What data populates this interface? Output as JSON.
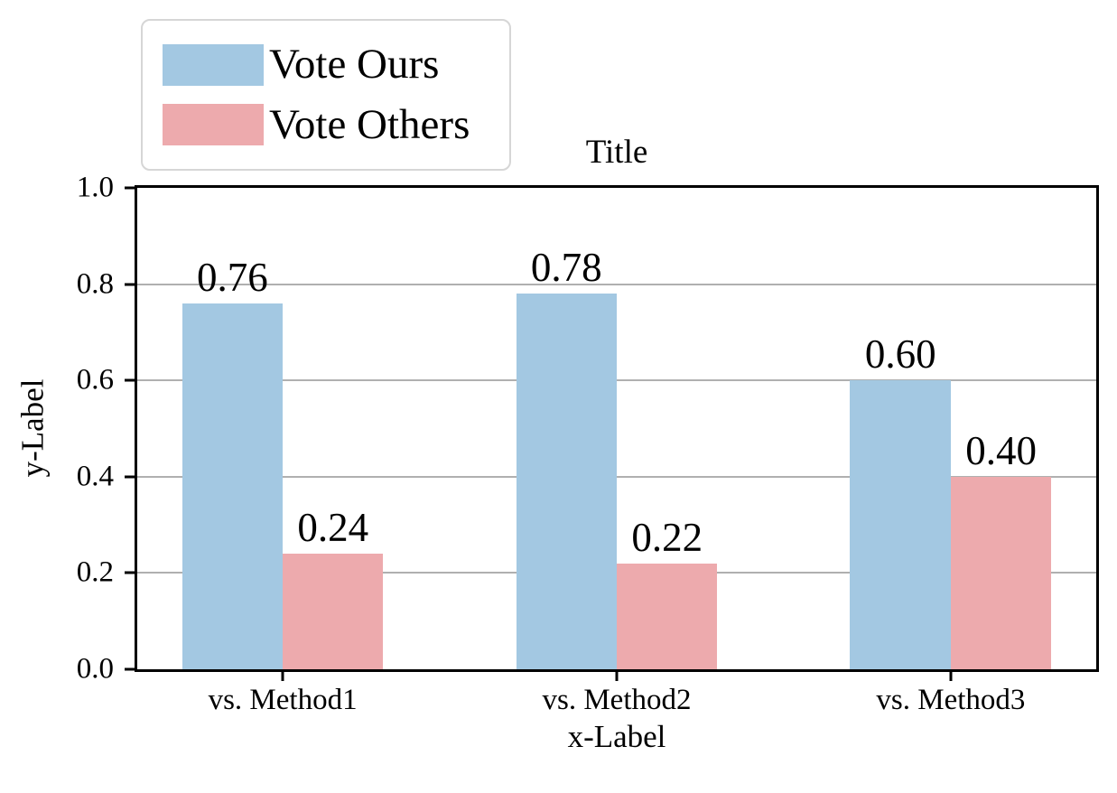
{
  "chart_data": {
    "type": "bar",
    "title": "Title",
    "xlabel": "x-Label",
    "ylabel": "y-Label",
    "categories": [
      "vs. Method1",
      "vs. Method2",
      "vs. Method3"
    ],
    "series": [
      {
        "name": "Vote Ours",
        "color": "#a3c8e2",
        "values": [
          0.76,
          0.78,
          0.6
        ]
      },
      {
        "name": "Vote Others",
        "color": "#edaaad",
        "values": [
          0.24,
          0.22,
          0.4
        ]
      }
    ],
    "value_labels": [
      "0.76",
      "0.24",
      "0.78",
      "0.22",
      "0.60",
      "0.40"
    ],
    "ylim": [
      0.0,
      1.0
    ],
    "yticks": [
      0.0,
      0.2,
      0.4,
      0.6,
      0.8,
      1.0
    ],
    "ytick_labels": [
      "0.0",
      "0.2",
      "0.4",
      "0.6",
      "0.8",
      "1.0"
    ],
    "grid": true,
    "gridline_color": "#b0b0b0",
    "legend_position": "upper-left",
    "legend_entries": [
      "Vote Ours",
      "Vote Others"
    ]
  }
}
